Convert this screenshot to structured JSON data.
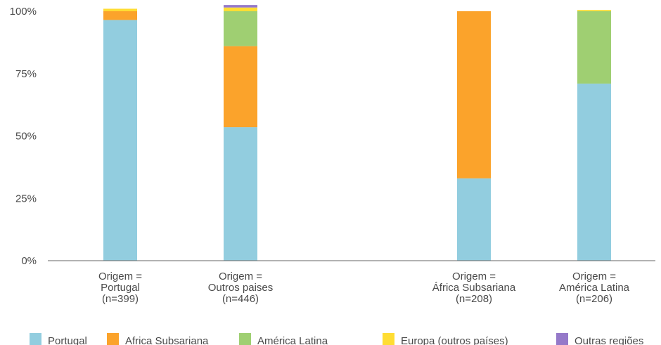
{
  "chart_data": {
    "type": "bar",
    "stacked": true,
    "categories": [
      [
        "Origem =",
        "Portugal",
        "(n=399)"
      ],
      [
        "Origem =",
        "Outros paises",
        "(n=446)"
      ],
      [
        "Origem =",
        "África Subsariana",
        "(n=208)"
      ],
      [
        "Origem =",
        "América Latina",
        "(n=206)"
      ]
    ],
    "yticks": [
      "0%",
      "25%",
      "50%",
      "75%",
      "100%"
    ],
    "ylim": [
      0,
      100
    ],
    "grid": false,
    "legend_position": "bottom",
    "series": [
      {
        "name": "Portugal",
        "color": "#92CDDF",
        "values": [
          96.5,
          53.5,
          33,
          71
        ]
      },
      {
        "name": "Africa Subsariana",
        "color": "#FBA32B",
        "values": [
          3.5,
          32.5,
          67,
          0
        ]
      },
      {
        "name": "América Latina",
        "color": "#9FCF72",
        "values": [
          0,
          14,
          0,
          29
        ]
      },
      {
        "name": "Europa (outros países)",
        "color": "#FFDD33",
        "values": [
          1,
          1.5,
          0,
          0.5
        ]
      },
      {
        "name": "Outras regiões",
        "color": "#9579C9",
        "values": [
          0,
          1,
          0,
          0
        ]
      }
    ]
  }
}
